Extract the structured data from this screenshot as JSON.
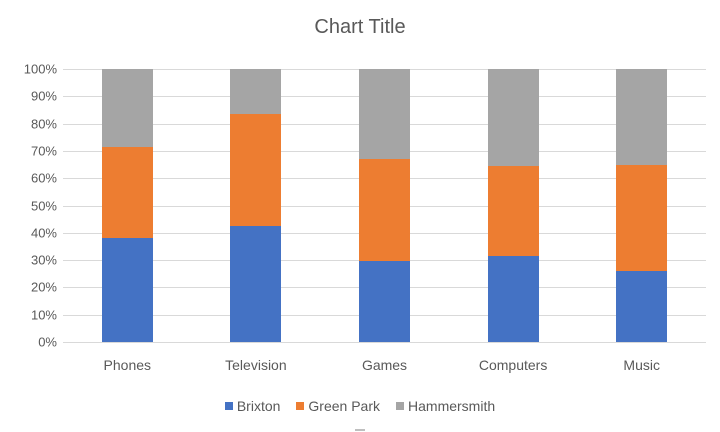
{
  "chart_data": {
    "type": "bar",
    "stacked": "percent",
    "title": "Chart Title",
    "xlabel": "",
    "ylabel": "",
    "ylim": [
      0,
      100
    ],
    "yticks": [
      "0%",
      "10%",
      "20%",
      "30%",
      "40%",
      "50%",
      "60%",
      "70%",
      "80%",
      "90%",
      "100%"
    ],
    "categories": [
      "Phones",
      "Television",
      "Games",
      "Computers",
      "Music"
    ],
    "series": [
      {
        "name": "Brixton",
        "color": "#4472c4",
        "values": [
          38,
          42.5,
          29.5,
          31.5,
          26
        ]
      },
      {
        "name": "Green Park",
        "color": "#ed7d31",
        "values": [
          33.5,
          41,
          37.5,
          33,
          39
        ]
      },
      {
        "name": "Hammersmith",
        "color": "#a5a5a5",
        "values": [
          28.5,
          16.5,
          33,
          35.5,
          35
        ]
      }
    ],
    "grid": true,
    "legend_position": "bottom"
  }
}
